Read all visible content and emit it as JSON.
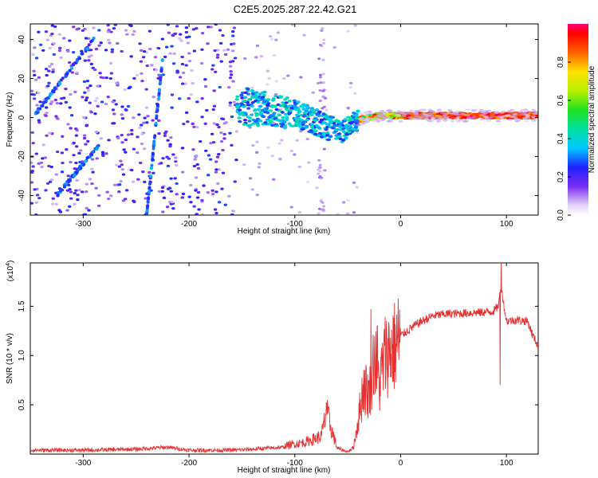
{
  "figure": {
    "title": "C2E5.2025.287.22.42.G21"
  },
  "chart_data": [
    {
      "type": "heatmap",
      "xlabel": "Height of straight line (km)",
      "ylabel": "Frequency (Hz)",
      "xlim": [
        -350,
        130
      ],
      "ylim": [
        -50,
        48
      ],
      "xticks": [
        -300,
        -200,
        -100,
        0,
        100
      ],
      "yticks": [
        -40,
        -20,
        0,
        20,
        40
      ],
      "colorbar": {
        "label": "Normalized spectral amplitude",
        "range": [
          0.0,
          1.0
        ],
        "ticks": [
          0.0,
          0.2,
          0.4,
          0.6,
          0.8
        ],
        "tick_labels": [
          "0.0",
          "0.2",
          "0.4",
          "0.6",
          "0.8"
        ]
      },
      "features": [
        {
          "name": "main-trace",
          "x": [
            -155,
            -120,
            -90,
            -70,
            -55,
            -40,
            -20,
            0,
            50,
            100,
            130
          ],
          "y": [
            6,
            4,
            0,
            -5,
            -7,
            -1,
            1,
            1,
            1,
            1,
            1
          ],
          "peak_amplitude": 0.9
        },
        {
          "name": "diagonal-streak-1",
          "x": [
            -345,
            -290
          ],
          "y": [
            2,
            40
          ],
          "peak_amplitude": 0.3
        },
        {
          "name": "diagonal-streak-2",
          "x": [
            -325,
            -285
          ],
          "y": [
            -40,
            -14
          ],
          "peak_amplitude": 0.3
        },
        {
          "name": "steep-streak",
          "x": [
            -240,
            -225
          ],
          "y": [
            -50,
            30
          ],
          "peak_amplitude": 0.3
        }
      ]
    },
    {
      "type": "line",
      "xlabel": "Height of straight line (km)",
      "ylabel": "SNR (10 * v/v)",
      "yscale_label": "(x10",
      "yscale_exp": "4",
      "xlim": [
        -350,
        130
      ],
      "ylim": [
        0,
        1.94
      ],
      "xticks": [
        -300,
        -200,
        -100,
        0,
        100
      ],
      "yticks": [
        0.5,
        1.0,
        1.5
      ],
      "ytick_labels": [
        "0.5",
        "1.0",
        "1.5"
      ],
      "series": [
        {
          "name": "SNR",
          "color": "#e83030",
          "x": [
            -350,
            -300,
            -250,
            -220,
            -200,
            -160,
            -140,
            -110,
            -90,
            -75,
            -70,
            -60,
            -50,
            -45,
            -40,
            -35,
            -30,
            -25,
            -20,
            -15,
            -10,
            -5,
            0,
            10,
            20,
            30,
            40,
            60,
            80,
            88,
            92,
            95,
            98,
            100,
            110,
            120,
            125,
            130
          ],
          "y": [
            0.04,
            0.04,
            0.05,
            0.07,
            0.04,
            0.04,
            0.05,
            0.07,
            0.1,
            0.15,
            0.35,
            0.05,
            0.02,
            0.05,
            0.35,
            0.7,
            0.6,
            1.0,
            0.7,
            1.0,
            1.05,
            1.1,
            1.2,
            1.28,
            1.35,
            1.4,
            1.42,
            1.43,
            1.44,
            1.45,
            1.5,
            1.7,
            1.48,
            1.35,
            1.36,
            1.35,
            1.2,
            1.1
          ],
          "spikes": [
            {
              "x": -70,
              "y": 0.52
            },
            {
              "x": -28,
              "y": 1.47
            },
            {
              "x": -22,
              "y": 1.3
            },
            {
              "x": 95,
              "y": 1.94
            },
            {
              "x": 94,
              "y": 0.7
            }
          ]
        }
      ]
    }
  ]
}
